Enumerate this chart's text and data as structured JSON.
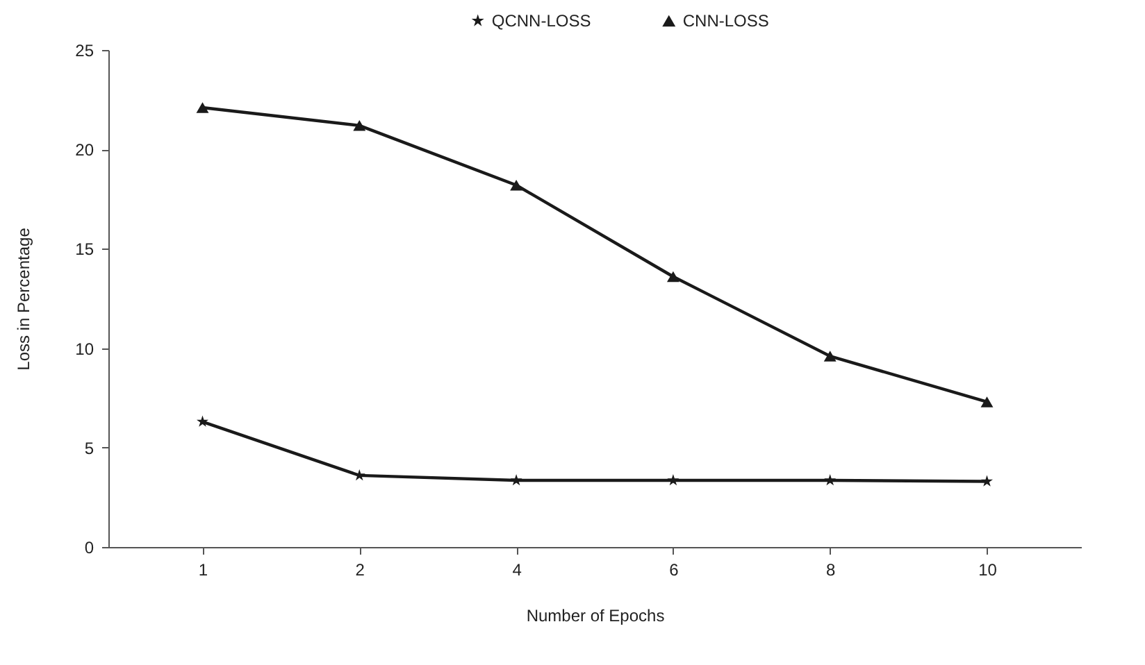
{
  "chart_data": {
    "type": "line",
    "xlabel": "Number of Epochs",
    "ylabel": "Loss in Percentage",
    "categories": [
      "1",
      "2",
      "4",
      "6",
      "8",
      "10"
    ],
    "series": [
      {
        "name": "QCNN-LOSS",
        "color": "#1a1a1a",
        "marker": "star",
        "values": [
          6.3,
          3.6,
          3.35,
          3.35,
          3.35,
          3.3
        ]
      },
      {
        "name": "CNN-LOSS",
        "color": "#1a1a1a",
        "marker": "triangle",
        "values": [
          22.1,
          21.2,
          18.2,
          13.6,
          9.6,
          7.3
        ]
      }
    ],
    "ylim": [
      0,
      25
    ],
    "yticks": [
      0,
      5,
      10,
      15,
      20,
      25
    ],
    "grid": false,
    "legend": "top",
    "line_style": "solid"
  }
}
